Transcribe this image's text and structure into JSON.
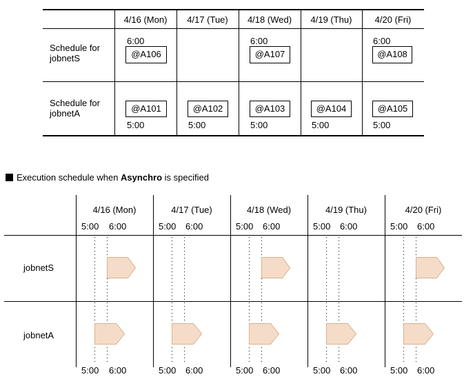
{
  "days": [
    "4/16 (Mon)",
    "4/17 (Tue)",
    "4/18 (Wed)",
    "4/19 (Thu)",
    "4/20 (Fri)"
  ],
  "table1": {
    "rows": [
      {
        "label_line1": "Schedule for",
        "label_line2": "jobnetS"
      },
      {
        "label_line1": "Schedule for",
        "label_line2": "jobnetA"
      }
    ],
    "jobnetS_cells": [
      {
        "time": "6:00",
        "id": "@A106"
      },
      {
        "time": "",
        "id": ""
      },
      {
        "time": "6:00",
        "id": "@A107"
      },
      {
        "time": "",
        "id": ""
      },
      {
        "time": "6:00",
        "id": "@A108"
      }
    ],
    "jobnetA_cells": [
      {
        "time": "5:00",
        "id": "@A101"
      },
      {
        "time": "5:00",
        "id": "@A102"
      },
      {
        "time": "5:00",
        "id": "@A103"
      },
      {
        "time": "5:00",
        "id": "@A104"
      },
      {
        "time": "5:00",
        "id": "@A105"
      }
    ]
  },
  "section2": {
    "caption_prefix": "Execution schedule when ",
    "caption_bold": "Asynchro",
    "caption_suffix": " is specified",
    "time_labels": [
      "5:00",
      "6:00"
    ],
    "rows": [
      "jobnetS",
      "jobnetA"
    ],
    "arrow_fill": "#f5dcc8",
    "arrow_stroke": "#d9b08c"
  }
}
